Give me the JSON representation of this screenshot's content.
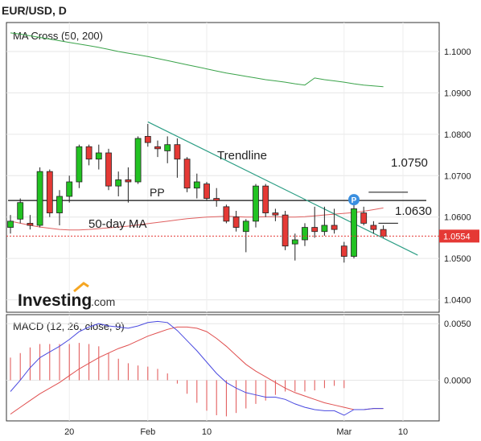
{
  "header": {
    "title": "EUR/USD, D"
  },
  "brand": {
    "name": "Investing",
    "suffix": ".com"
  },
  "chart_data": [
    {
      "type": "candlestick",
      "indicator_label": "MA Cross (50, 200)",
      "price_axis": {
        "min": 1.037,
        "max": 1.107,
        "ticks": [
          {
            "value": 1.1,
            "label": "1.1000"
          },
          {
            "value": 1.09,
            "label": "1.0900"
          },
          {
            "value": 1.08,
            "label": "1.0800"
          },
          {
            "value": 1.07,
            "label": "1.0700"
          },
          {
            "value": 1.06,
            "label": "1.0600"
          },
          {
            "value": 1.05,
            "label": "1.0500"
          },
          {
            "value": 1.04,
            "label": "1.0400"
          }
        ]
      },
      "time_axis": {
        "ticks": [
          {
            "index": 6,
            "label": "20"
          },
          {
            "index": 14,
            "label": "Feb"
          },
          {
            "index": 20,
            "label": "10"
          },
          {
            "index": 34,
            "label": "Mar"
          },
          {
            "index": 40,
            "label": "10"
          }
        ]
      },
      "candles": [
        {
          "o": 1.0575,
          "h": 1.0605,
          "l": 1.056,
          "c": 1.059
        },
        {
          "o": 1.0595,
          "h": 1.0645,
          "l": 1.0585,
          "c": 1.0635
        },
        {
          "o": 1.0585,
          "h": 1.0605,
          "l": 1.057,
          "c": 1.058
        },
        {
          "o": 1.058,
          "h": 1.072,
          "l": 1.0575,
          "c": 1.071
        },
        {
          "o": 1.071,
          "h": 1.0715,
          "l": 1.06,
          "c": 1.061
        },
        {
          "o": 1.061,
          "h": 1.0665,
          "l": 1.058,
          "c": 1.065
        },
        {
          "o": 1.065,
          "h": 1.07,
          "l": 1.0635,
          "c": 1.0685
        },
        {
          "o": 1.0685,
          "h": 1.0775,
          "l": 1.067,
          "c": 1.077
        },
        {
          "o": 1.077,
          "h": 1.0775,
          "l": 1.0725,
          "c": 1.074
        },
        {
          "o": 1.074,
          "h": 1.0775,
          "l": 1.0715,
          "c": 1.0755
        },
        {
          "o": 1.0755,
          "h": 1.0765,
          "l": 1.0665,
          "c": 1.0675
        },
        {
          "o": 1.0675,
          "h": 1.071,
          "l": 1.065,
          "c": 1.069
        },
        {
          "o": 1.069,
          "h": 1.072,
          "l": 1.0635,
          "c": 1.0685
        },
        {
          "o": 1.0685,
          "h": 1.0795,
          "l": 1.068,
          "c": 1.079
        },
        {
          "o": 1.0795,
          "h": 1.0825,
          "l": 1.077,
          "c": 1.078
        },
        {
          "o": 1.077,
          "h": 1.0785,
          "l": 1.0745,
          "c": 1.0765
        },
        {
          "o": 1.076,
          "h": 1.0795,
          "l": 1.073,
          "c": 1.0775
        },
        {
          "o": 1.0775,
          "h": 1.079,
          "l": 1.0695,
          "c": 1.074
        },
        {
          "o": 1.074,
          "h": 1.0745,
          "l": 1.066,
          "c": 1.067
        },
        {
          "o": 1.067,
          "h": 1.0705,
          "l": 1.0645,
          "c": 1.0685
        },
        {
          "o": 1.068,
          "h": 1.0685,
          "l": 1.064,
          "c": 1.0645
        },
        {
          "o": 1.0645,
          "h": 1.067,
          "l": 1.0625,
          "c": 1.064
        },
        {
          "o": 1.0625,
          "h": 1.063,
          "l": 1.0585,
          "c": 1.059
        },
        {
          "o": 1.06,
          "h": 1.0615,
          "l": 1.0565,
          "c": 1.0575
        },
        {
          "o": 1.0565,
          "h": 1.0595,
          "l": 1.0515,
          "c": 1.059
        },
        {
          "o": 1.059,
          "h": 1.068,
          "l": 1.0575,
          "c": 1.0675
        },
        {
          "o": 1.0675,
          "h": 1.068,
          "l": 1.06,
          "c": 1.061
        },
        {
          "o": 1.061,
          "h": 1.062,
          "l": 1.059,
          "c": 1.0605
        },
        {
          "o": 1.0605,
          "h": 1.0615,
          "l": 1.052,
          "c": 1.053
        },
        {
          "o": 1.0535,
          "h": 1.056,
          "l": 1.0495,
          "c": 1.0545
        },
        {
          "o": 1.0545,
          "h": 1.0585,
          "l": 1.053,
          "c": 1.0575
        },
        {
          "o": 1.0575,
          "h": 1.0625,
          "l": 1.055,
          "c": 1.0565
        },
        {
          "o": 1.0565,
          "h": 1.0625,
          "l": 1.0555,
          "c": 1.058
        },
        {
          "o": 1.058,
          "h": 1.062,
          "l": 1.056,
          "c": 1.057
        },
        {
          "o": 1.053,
          "h": 1.054,
          "l": 1.049,
          "c": 1.0505
        },
        {
          "o": 1.0505,
          "h": 1.063,
          "l": 1.05,
          "c": 1.062
        },
        {
          "o": 1.061,
          "h": 1.0625,
          "l": 1.058,
          "c": 1.0585
        },
        {
          "o": 1.058,
          "h": 1.059,
          "l": 1.056,
          "c": 1.057
        },
        {
          "o": 1.057,
          "h": 1.058,
          "l": 1.055,
          "c": 1.0554
        }
      ],
      "ma50": [
        1.059,
        1.0585,
        1.058,
        1.0576,
        1.0573,
        1.057,
        1.0569,
        1.0569,
        1.057,
        1.0572,
        1.0574,
        1.0576,
        1.0578,
        1.0581,
        1.0584,
        1.0587,
        1.059,
        1.0593,
        1.0596,
        1.0598,
        1.06,
        1.0601,
        1.0602,
        1.0601,
        1.06,
        1.06,
        1.0601,
        1.0601,
        1.06,
        1.06,
        1.0601,
        1.0603,
        1.0605,
        1.0607,
        1.0609,
        1.0611,
        1.0614,
        1.0618,
        1.0622
      ],
      "ma200": [
        1.1045,
        1.1042,
        1.1038,
        1.1034,
        1.103,
        1.1026,
        1.1022,
        1.1018,
        1.1014,
        1.101,
        1.1005,
        1.1,
        1.0996,
        1.0992,
        1.0988,
        1.0983,
        1.0978,
        1.0973,
        1.0968,
        1.0963,
        1.0958,
        1.0953,
        1.0948,
        1.0944,
        1.094,
        1.0936,
        1.0932,
        1.0929,
        1.0926,
        1.0922,
        1.0919,
        1.0936,
        1.0932,
        1.0929,
        1.0926,
        1.0922,
        1.0919,
        1.0917,
        1.0915
      ],
      "pivot": {
        "label": "PP",
        "value": 1.064
      },
      "trendline": {
        "label": "Trendline",
        "from": {
          "index": 14,
          "value": 1.083
        },
        "to": {
          "index": 41.5,
          "value": 1.0508
        }
      },
      "annotations": [
        {
          "label": "1.0750",
          "value": 1.066,
          "from_index": 36.5,
          "to_index": 40.5
        },
        {
          "label": "1.0630",
          "value": 1.0585,
          "from_index": 37.5,
          "to_index": 39.5
        },
        {
          "label": "50-day MA",
          "value": 1.0597
        }
      ],
      "marker": {
        "label": "P",
        "index": 35,
        "value": 1.0642
      },
      "last_price": {
        "value": 1.0554,
        "label": "1.0554",
        "color": "#e53935"
      },
      "colors": {
        "up": "#22c222",
        "down": "#e53935",
        "ma50": "#e06060",
        "ma200": "#3aa34a",
        "trend": "#2e9f86"
      }
    },
    {
      "type": "macd",
      "label": "MACD (12, 26, close, 9)",
      "axis": {
        "min": -0.0036,
        "max": 0.0058,
        "ticks": [
          {
            "value": 0.005,
            "label": "0.0050"
          },
          {
            "value": 0.0,
            "label": "0.0000"
          }
        ]
      },
      "macd": [
        -0.001,
        0.0,
        0.0011,
        0.002,
        0.0025,
        0.003,
        0.0036,
        0.0043,
        0.0047,
        0.005,
        0.0048,
        0.0047,
        0.0046,
        0.0048,
        0.0051,
        0.0052,
        0.0051,
        0.0044,
        0.0035,
        0.0026,
        0.0016,
        0.0006,
        -0.0002,
        -0.0007,
        -0.0011,
        -0.0013,
        -0.0015,
        -0.0015,
        -0.0017,
        -0.0021,
        -0.0024,
        -0.0026,
        -0.0027,
        -0.0027,
        -0.0031,
        -0.0026,
        -0.0026,
        -0.0025,
        -0.0025
      ],
      "signal": [
        -0.003,
        -0.0024,
        -0.0018,
        -0.0012,
        -0.0007,
        -0.0002,
        0.0004,
        0.001,
        0.0015,
        0.002,
        0.0024,
        0.0028,
        0.0031,
        0.0035,
        0.0039,
        0.0042,
        0.0045,
        0.0047,
        0.0047,
        0.0046,
        0.0043,
        0.0037,
        0.003,
        0.0022,
        0.0014,
        0.0008,
        0.0003,
        -0.0002,
        -0.0007,
        -0.0011,
        -0.0014,
        -0.0017,
        -0.002,
        -0.0022,
        -0.0024,
        -0.0026,
        -0.0026,
        -0.0025,
        -0.0025
      ],
      "histogram": [
        0.002,
        0.0024,
        0.0029,
        0.0032,
        0.0032,
        0.0032,
        0.0032,
        0.0033,
        0.0032,
        0.003,
        0.0024,
        0.0019,
        0.0015,
        0.0013,
        0.0012,
        0.001,
        0.0006,
        -0.0003,
        -0.0012,
        -0.002,
        -0.0027,
        -0.0031,
        -0.0032,
        -0.0029,
        -0.0025,
        -0.0021,
        -0.0018,
        -0.0013,
        -0.001,
        -0.001,
        -0.001,
        -0.0009,
        -0.0007,
        -0.0005,
        -0.0007,
        0.0,
        0.0,
        0.0,
        0.0
      ],
      "colors": {
        "macd": "#4a4ae0",
        "signal": "#e05050",
        "histogram": "#e05050"
      }
    }
  ]
}
